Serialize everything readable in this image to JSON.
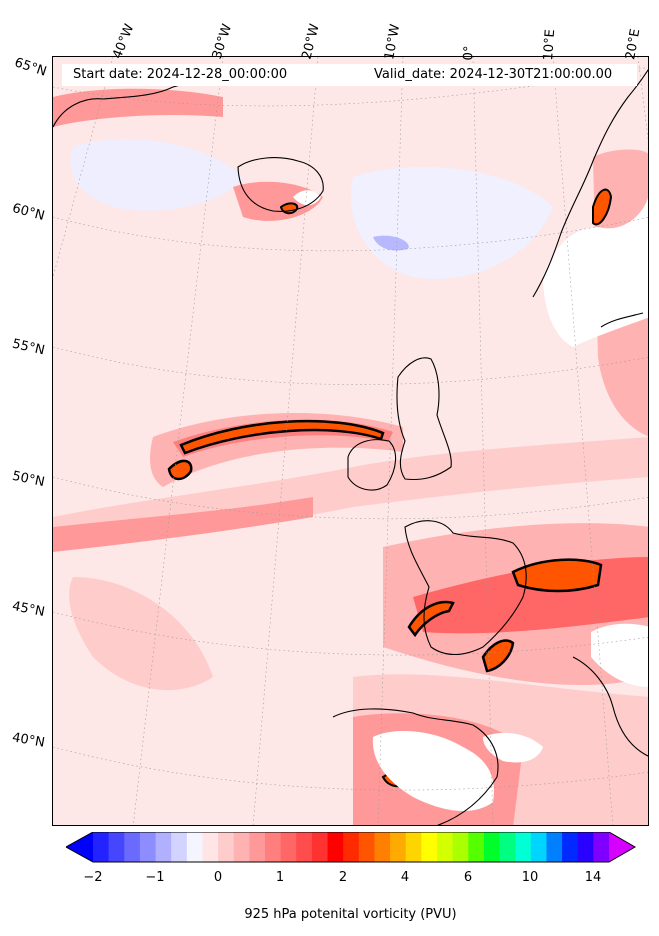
{
  "header": {
    "start_date": "Start date: 2024-12-28_00:00:00",
    "valid_date": "Valid_date: 2024-12-30T21:00:00.00"
  },
  "longitude_labels": [
    "40°W",
    "30°W",
    "20°W",
    "10°W",
    "0°",
    "10°E",
    "20°E"
  ],
  "latitude_labels": [
    "65°N",
    "60°N",
    "55°N",
    "50°N",
    "45°N",
    "40°N"
  ],
  "colorbar": {
    "label": "925 hPa potenital vorticity (PVU)",
    "ticks": [
      "−2",
      "−1",
      "0",
      "1",
      "2",
      "4",
      "6",
      "10",
      "14"
    ],
    "colors": [
      "#0000ff",
      "#2323ff",
      "#4646ff",
      "#6a6aff",
      "#8d8dff",
      "#b0b0ff",
      "#d3d3ff",
      "#f5f5ff",
      "#ffe5e5",
      "#ffcccc",
      "#ffb2b2",
      "#ff9999",
      "#ff7f7f",
      "#ff6666",
      "#ff4c4c",
      "#ff3232",
      "#ff0000",
      "#ff2a00",
      "#ff5500",
      "#ff8000",
      "#ffaa00",
      "#ffd500",
      "#ffff00",
      "#d4ff00",
      "#aaff00",
      "#55ff00",
      "#00ff2a",
      "#00ff80",
      "#00ffd5",
      "#00d5ff",
      "#0080ff",
      "#002aff",
      "#2a00ff",
      "#8000ff",
      "#d500ff"
    ]
  }
}
